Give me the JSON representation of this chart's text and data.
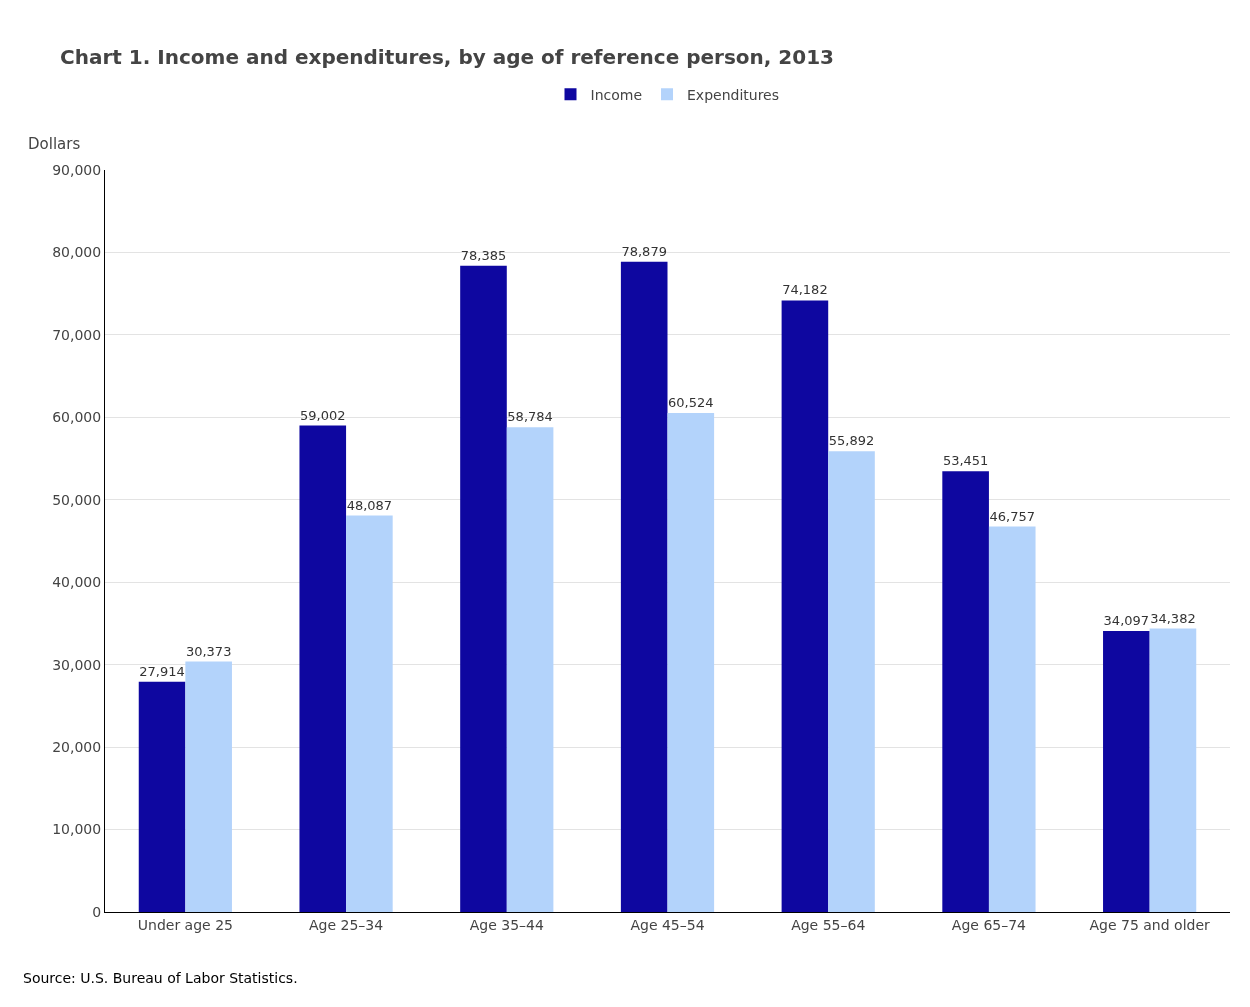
{
  "chart_data": {
    "type": "bar",
    "title": "Chart 1. Income and expenditures, by age of reference person, 2013",
    "ylabel": "Dollars",
    "categories": [
      "Under age 25",
      "Age 25–34",
      "Age 35–44",
      "Age 45–54",
      "Age 55–64",
      "Age 65–74",
      "Age 75 and older"
    ],
    "series": [
      {
        "name": "Income",
        "color": "#0e07a0",
        "values": [
          27914,
          59002,
          78385,
          78879,
          74182,
          53451,
          34097
        ],
        "value_labels": [
          "27,914",
          "59,002",
          "78,385",
          "78,879",
          "74,182",
          "53,451",
          "34,097"
        ]
      },
      {
        "name": "Expenditures",
        "color": "#b3d3fb",
        "values": [
          30373,
          48087,
          58784,
          60524,
          55892,
          46757,
          34382
        ],
        "value_labels": [
          "30,373",
          "48,087",
          "58,784",
          "60,524",
          "55,892",
          "46,757",
          "34,382"
        ]
      }
    ],
    "ylim": [
      0,
      90000
    ],
    "yticks": [
      {
        "value": 0,
        "label": "0"
      },
      {
        "value": 10000,
        "label": "10,000"
      },
      {
        "value": 20000,
        "label": "20,000"
      },
      {
        "value": 30000,
        "label": "30,000"
      },
      {
        "value": 40000,
        "label": "40,000"
      },
      {
        "value": 50000,
        "label": "50,000"
      },
      {
        "value": 60000,
        "label": "60,000"
      },
      {
        "value": 70000,
        "label": "70,000"
      },
      {
        "value": 80000,
        "label": "80,000"
      },
      {
        "value": 90000,
        "label": "90,000"
      }
    ],
    "grid": "y",
    "legend": "top",
    "annotations": [
      "Source: U.S. Bureau of Labor Statistics."
    ]
  }
}
